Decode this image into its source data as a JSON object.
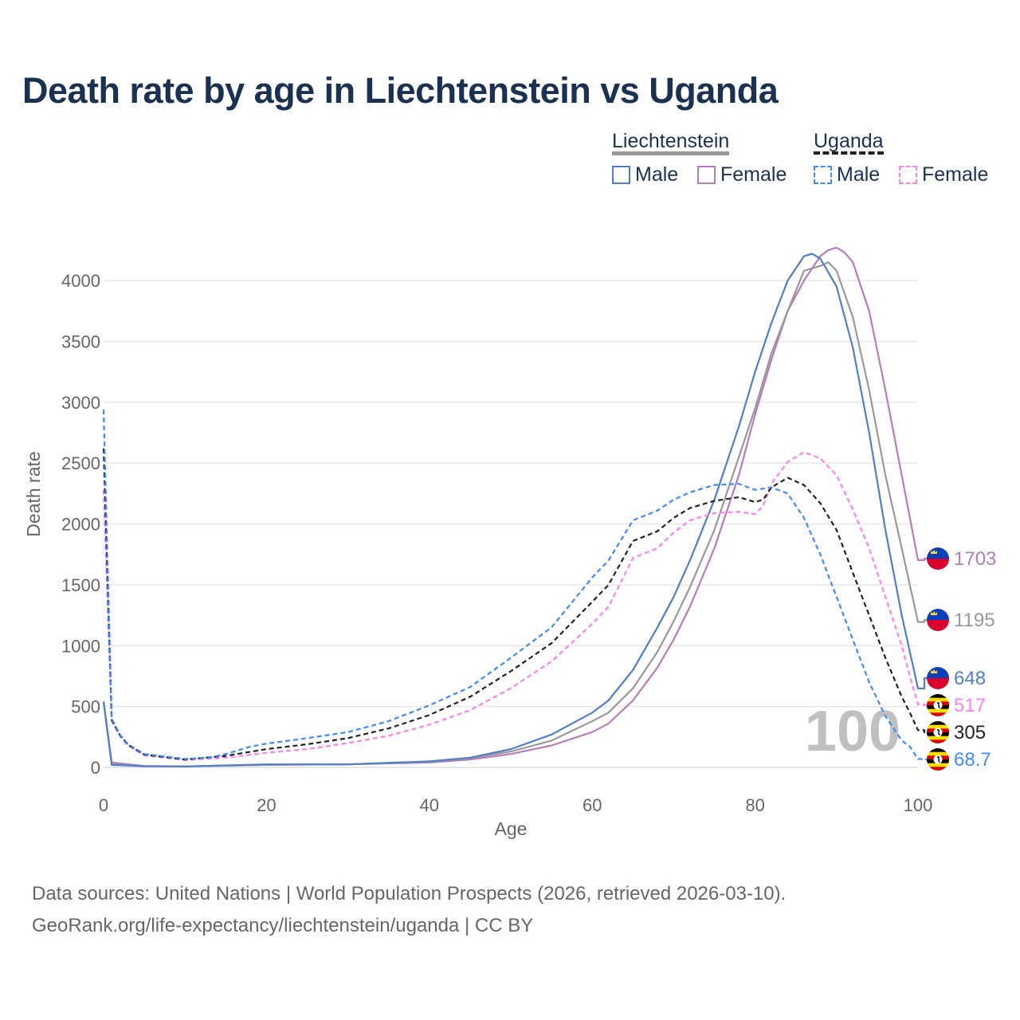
{
  "title": "Death rate by age in Liechtenstein vs Uganda",
  "legend": {
    "groups": [
      {
        "label": "Liechtenstein",
        "items": [
          "Male",
          "Female"
        ]
      },
      {
        "label": "Uganda",
        "items": [
          "Male",
          "Female"
        ]
      }
    ]
  },
  "footer": {
    "line1": "Data sources: United Nations | World Population Prospects (2026, retrieved 2026-03-10).",
    "line2": "GeoRank.org/life-expectancy/liechtenstein/uganda | CC BY"
  },
  "chart_data": {
    "type": "line",
    "title": "Death rate by age in Liechtenstein vs Uganda",
    "xlabel": "Age",
    "ylabel": "Death rate",
    "xlim": [
      0,
      100
    ],
    "ylim": [
      0,
      4300
    ],
    "xticks": [
      "0",
      "20",
      "40",
      "60",
      "80",
      "100"
    ],
    "yticks": [
      "0",
      "500",
      "1000",
      "1500",
      "2000",
      "2500",
      "3000",
      "3500",
      "4000"
    ],
    "grid": true,
    "legend_position": "top-right",
    "age_marker": "100",
    "series": [
      {
        "name": "Liechtenstein Female",
        "country": "Liechtenstein",
        "color": "#b87cb8",
        "dashed": false,
        "end_label": "1703",
        "points": [
          [
            0,
            540
          ],
          [
            1,
            40
          ],
          [
            5,
            12
          ],
          [
            10,
            8
          ],
          [
            20,
            20
          ],
          [
            30,
            25
          ],
          [
            40,
            40
          ],
          [
            45,
            65
          ],
          [
            50,
            110
          ],
          [
            55,
            180
          ],
          [
            60,
            290
          ],
          [
            62,
            360
          ],
          [
            65,
            550
          ],
          [
            68,
            820
          ],
          [
            70,
            1050
          ],
          [
            72,
            1320
          ],
          [
            75,
            1800
          ],
          [
            78,
            2400
          ],
          [
            80,
            2900
          ],
          [
            82,
            3350
          ],
          [
            84,
            3750
          ],
          [
            86,
            4000
          ],
          [
            88,
            4200
          ],
          [
            89,
            4250
          ],
          [
            90,
            4270
          ],
          [
            91,
            4230
          ],
          [
            92,
            4150
          ],
          [
            94,
            3750
          ],
          [
            96,
            3100
          ],
          [
            98,
            2400
          ],
          [
            100,
            1703
          ]
        ]
      },
      {
        "name": "Liechtenstein",
        "country": "Liechtenstein",
        "color": "#999999",
        "dashed": false,
        "end_label": "1195",
        "points": [
          [
            0,
            540
          ],
          [
            1,
            25
          ],
          [
            5,
            10
          ],
          [
            10,
            8
          ],
          [
            20,
            22
          ],
          [
            30,
            25
          ],
          [
            40,
            45
          ],
          [
            45,
            75
          ],
          [
            50,
            130
          ],
          [
            55,
            220
          ],
          [
            60,
            380
          ],
          [
            62,
            450
          ],
          [
            65,
            650
          ],
          [
            68,
            950
          ],
          [
            70,
            1200
          ],
          [
            72,
            1480
          ],
          [
            75,
            1950
          ],
          [
            78,
            2550
          ],
          [
            80,
            2950
          ],
          [
            82,
            3400
          ],
          [
            84,
            3750
          ],
          [
            86,
            4080
          ],
          [
            88,
            4120
          ],
          [
            89,
            4150
          ],
          [
            90,
            4080
          ],
          [
            92,
            3700
          ],
          [
            94,
            3100
          ],
          [
            96,
            2400
          ],
          [
            98,
            1800
          ],
          [
            100,
            1195
          ]
        ]
      },
      {
        "name": "Liechtenstein Male",
        "country": "Liechtenstein",
        "color": "#4f7fc9",
        "dashed": false,
        "end_label": "648",
        "points": [
          [
            0,
            540
          ],
          [
            1,
            20
          ],
          [
            5,
            10
          ],
          [
            10,
            8
          ],
          [
            20,
            25
          ],
          [
            30,
            25
          ],
          [
            40,
            50
          ],
          [
            45,
            80
          ],
          [
            50,
            150
          ],
          [
            55,
            270
          ],
          [
            60,
            450
          ],
          [
            62,
            550
          ],
          [
            65,
            800
          ],
          [
            68,
            1150
          ],
          [
            70,
            1400
          ],
          [
            72,
            1700
          ],
          [
            75,
            2200
          ],
          [
            78,
            2800
          ],
          [
            80,
            3250
          ],
          [
            82,
            3650
          ],
          [
            84,
            4000
          ],
          [
            86,
            4200
          ],
          [
            87,
            4220
          ],
          [
            88,
            4180
          ],
          [
            90,
            3950
          ],
          [
            92,
            3450
          ],
          [
            94,
            2750
          ],
          [
            96,
            1950
          ],
          [
            98,
            1250
          ],
          [
            100,
            648
          ]
        ]
      },
      {
        "name": "Uganda Female",
        "country": "Uganda",
        "color": "#ff80f0",
        "dashed": true,
        "end_label": "517",
        "points": [
          [
            0,
            2280
          ],
          [
            1,
            380
          ],
          [
            2,
            260
          ],
          [
            3,
            180
          ],
          [
            5,
            100
          ],
          [
            10,
            60
          ],
          [
            15,
            80
          ],
          [
            20,
            120
          ],
          [
            25,
            150
          ],
          [
            30,
            200
          ],
          [
            35,
            260
          ],
          [
            40,
            350
          ],
          [
            45,
            470
          ],
          [
            50,
            650
          ],
          [
            55,
            870
          ],
          [
            60,
            1180
          ],
          [
            62,
            1320
          ],
          [
            65,
            1720
          ],
          [
            68,
            1800
          ],
          [
            70,
            1930
          ],
          [
            72,
            2030
          ],
          [
            75,
            2090
          ],
          [
            78,
            2100
          ],
          [
            80,
            2080
          ],
          [
            81,
            2150
          ],
          [
            82,
            2330
          ],
          [
            84,
            2510
          ],
          [
            86,
            2590
          ],
          [
            88,
            2540
          ],
          [
            90,
            2400
          ],
          [
            92,
            2120
          ],
          [
            94,
            1800
          ],
          [
            96,
            1400
          ],
          [
            98,
            1000
          ],
          [
            99,
            750
          ],
          [
            100,
            517
          ]
        ]
      },
      {
        "name": "Uganda",
        "country": "Uganda",
        "color": "#222222",
        "dashed": true,
        "end_label": "305",
        "points": [
          [
            0,
            2620
          ],
          [
            1,
            390
          ],
          [
            2,
            265
          ],
          [
            3,
            185
          ],
          [
            5,
            105
          ],
          [
            10,
            65
          ],
          [
            15,
            95
          ],
          [
            20,
            150
          ],
          [
            25,
            190
          ],
          [
            30,
            240
          ],
          [
            35,
            320
          ],
          [
            40,
            430
          ],
          [
            45,
            580
          ],
          [
            50,
            790
          ],
          [
            55,
            1020
          ],
          [
            60,
            1360
          ],
          [
            62,
            1500
          ],
          [
            65,
            1860
          ],
          [
            68,
            1940
          ],
          [
            70,
            2050
          ],
          [
            72,
            2130
          ],
          [
            75,
            2190
          ],
          [
            78,
            2220
          ],
          [
            80,
            2180
          ],
          [
            81,
            2200
          ],
          [
            82,
            2300
          ],
          [
            84,
            2380
          ],
          [
            86,
            2320
          ],
          [
            88,
            2170
          ],
          [
            90,
            1950
          ],
          [
            92,
            1600
          ],
          [
            94,
            1250
          ],
          [
            96,
            900
          ],
          [
            98,
            580
          ],
          [
            99,
            450
          ],
          [
            100,
            305
          ]
        ]
      },
      {
        "name": "Uganda Male",
        "country": "Uganda",
        "color": "#3d8bff",
        "dashed": true,
        "end_label": "68.7",
        "points": [
          [
            0,
            2940
          ],
          [
            1,
            400
          ],
          [
            2,
            270
          ],
          [
            3,
            190
          ],
          [
            5,
            110
          ],
          [
            10,
            70
          ],
          [
            13,
            80
          ],
          [
            15,
            110
          ],
          [
            18,
            170
          ],
          [
            20,
            195
          ],
          [
            25,
            240
          ],
          [
            30,
            290
          ],
          [
            35,
            380
          ],
          [
            40,
            510
          ],
          [
            45,
            660
          ],
          [
            50,
            900
          ],
          [
            55,
            1150
          ],
          [
            60,
            1560
          ],
          [
            62,
            1700
          ],
          [
            65,
            2030
          ],
          [
            68,
            2110
          ],
          [
            70,
            2200
          ],
          [
            72,
            2260
          ],
          [
            75,
            2320
          ],
          [
            78,
            2330
          ],
          [
            80,
            2280
          ],
          [
            82,
            2300
          ],
          [
            84,
            2250
          ],
          [
            86,
            2050
          ],
          [
            88,
            1750
          ],
          [
            90,
            1400
          ],
          [
            92,
            1050
          ],
          [
            94,
            700
          ],
          [
            96,
            420
          ],
          [
            98,
            220
          ],
          [
            99,
            170
          ],
          [
            100,
            68.7
          ]
        ]
      }
    ]
  }
}
